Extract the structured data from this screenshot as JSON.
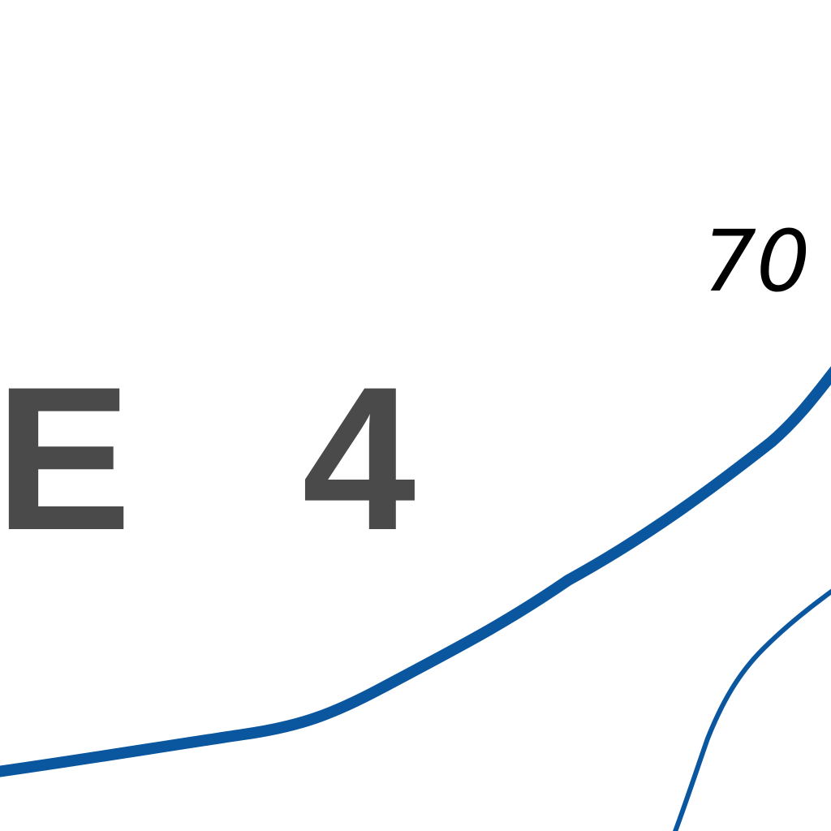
{
  "map": {
    "zone_label": "E   4",
    "contour_label": "70",
    "colors": {
      "background": "#ffffff",
      "zone_label": "#4a4a4a",
      "contour_label": "#000000",
      "water_line": "#0a57a0"
    },
    "features": [
      {
        "name": "river-main-line",
        "kind": "waterway"
      },
      {
        "name": "river-branch-line",
        "kind": "waterway"
      }
    ]
  }
}
